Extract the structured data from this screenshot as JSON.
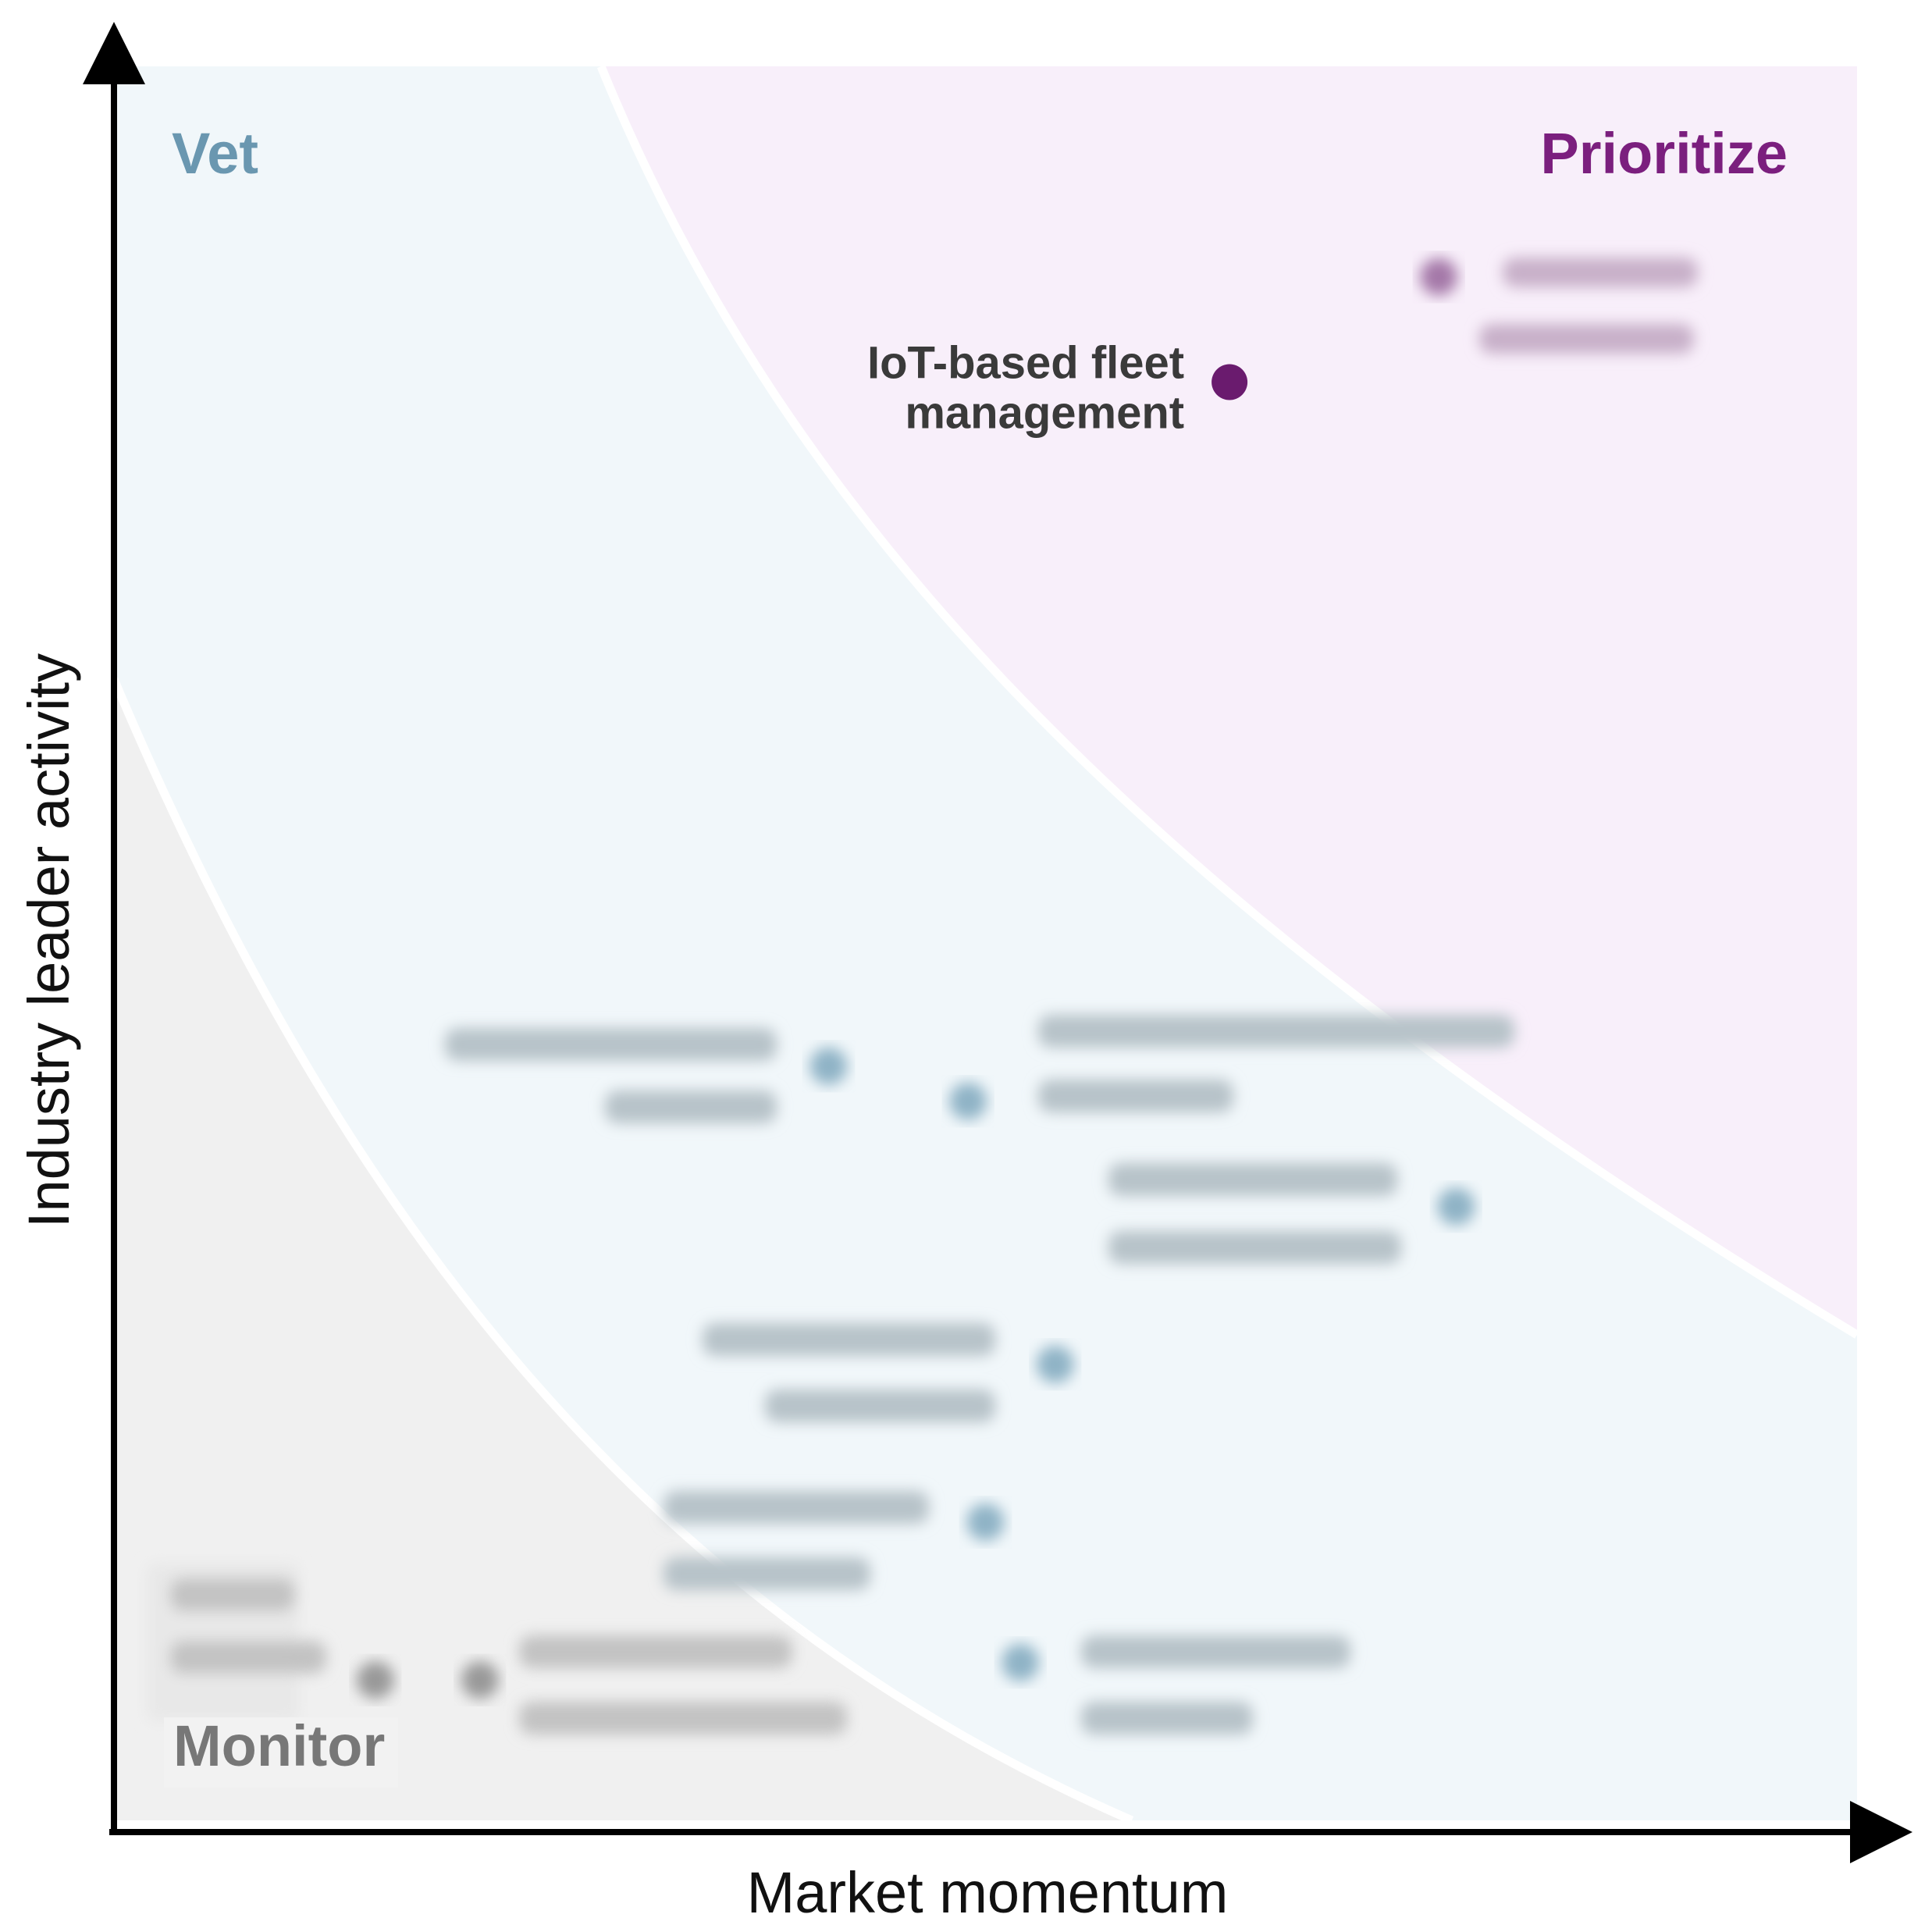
{
  "chart_data": {
    "type": "scatter",
    "xlabel": "Market momentum",
    "ylabel": "Industry leader activity",
    "xlim": [
      0,
      100
    ],
    "ylim": [
      0,
      100
    ],
    "grid": false,
    "zones": [
      {
        "name": "Vet",
        "color": "#6a97b0",
        "fill": "#f1f7fa"
      },
      {
        "name": "Prioritize",
        "color": "#7b1f7e",
        "fill": "#f8effa"
      },
      {
        "name": "Monitor",
        "color": "#777777",
        "fill": "#f0f0f0"
      }
    ],
    "points": [
      {
        "label": "IoT-based fleet management",
        "lines": [
          "IoT-based fleet",
          "management"
        ],
        "x": 64,
        "y": 82,
        "zone": "Prioritize",
        "blurred": false,
        "color": "#6a1b6e"
      },
      {
        "label": "",
        "x": 76,
        "y": 88,
        "zone": "Prioritize",
        "blurred": true,
        "color": "#a478a8"
      },
      {
        "label": "",
        "x": 41,
        "y": 43,
        "zone": "Vet",
        "blurred": true,
        "color": "#8fb3c6"
      },
      {
        "label": "",
        "x": 49,
        "y": 41,
        "zone": "Vet",
        "blurred": true,
        "color": "#8fb3c6"
      },
      {
        "label": "",
        "x": 77,
        "y": 35,
        "zone": "Vet",
        "blurred": true,
        "color": "#8fb3c6"
      },
      {
        "label": "",
        "x": 54,
        "y": 26,
        "zone": "Vet",
        "blurred": true,
        "color": "#8fb3c6"
      },
      {
        "label": "",
        "x": 50,
        "y": 17,
        "zone": "Vet",
        "blurred": true,
        "color": "#8fb3c6"
      },
      {
        "label": "",
        "x": 52,
        "y": 9,
        "zone": "Vet",
        "blurred": true,
        "color": "#8fb3c6"
      },
      {
        "label": "",
        "x": 15,
        "y": 8,
        "zone": "Monitor",
        "blurred": true,
        "color": "#999999"
      },
      {
        "label": "",
        "x": 21,
        "y": 8,
        "zone": "Monitor",
        "blurred": true,
        "color": "#999999"
      }
    ]
  }
}
